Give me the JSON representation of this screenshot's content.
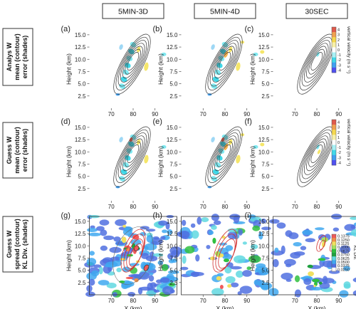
{
  "chart_data": {
    "type": "heatmap",
    "columns": [
      "5MIN-3D",
      "5MIN-4D",
      "30SEC"
    ],
    "row_labels": [
      [
        "Analys W",
        "mean (contour)",
        "error (shades)"
      ],
      [
        "Guess W",
        "mean (contour)",
        "error (shades)"
      ],
      [
        "Guess W",
        "spread (contour)",
        "KL Div. (shades)"
      ]
    ],
    "panel_letters": [
      "(a)",
      "(b)",
      "(c)",
      "(d)",
      "(e)",
      "(f)",
      "(g)",
      "(h)",
      "(i)"
    ],
    "xlabel": "X (km)",
    "ylabel": "Height (km)",
    "xlim": [
      60,
      100
    ],
    "ylim": [
      0,
      16
    ],
    "xticks": [
      "70",
      "80",
      "90"
    ],
    "yticks": [
      "2.5",
      "5.0",
      "7.5",
      "10.0",
      "12.5",
      "15.0"
    ],
    "grid": false,
    "colorbars": [
      {
        "label": "vertical velocity (m s⁻¹)",
        "ticks": [
          "4",
          "3",
          "2",
          "1",
          "0",
          "-1",
          "-2",
          "-3",
          "-4"
        ],
        "colors": [
          "#e05a4c",
          "#f0a050",
          "#f5d84e",
          "#f7f0a8",
          "#ffffff",
          "#a8f0f5",
          "#40d8e8",
          "#40a0f0",
          "#5050f0"
        ]
      },
      {
        "label": "vertical velocity (m s⁻¹)",
        "ticks": [
          "4",
          "3",
          "2",
          "1",
          "0",
          "-1",
          "-2",
          "-3",
          "-4"
        ],
        "colors": [
          "#e05a4c",
          "#f0a050",
          "#f5d84e",
          "#f7f0a8",
          "#ffffff",
          "#a8f0f5",
          "#40d8e8",
          "#40a0f0",
          "#5050f0"
        ]
      },
      {
        "label": "KL Div.",
        "ticks": [
          "0.1375",
          "0.1250",
          "0.1125",
          "0.1000",
          "0.0875",
          "0.0750",
          "0.0625",
          "0.0500",
          "0.0375",
          "0.0250"
        ],
        "colors": [
          "#ef5a5a",
          "#f0904a",
          "#f0e060",
          "#a8e060",
          "#30c040",
          "#20a040",
          "#60d8e0",
          "#40a8f0",
          "#5070e0",
          "#ffffff"
        ]
      }
    ]
  }
}
